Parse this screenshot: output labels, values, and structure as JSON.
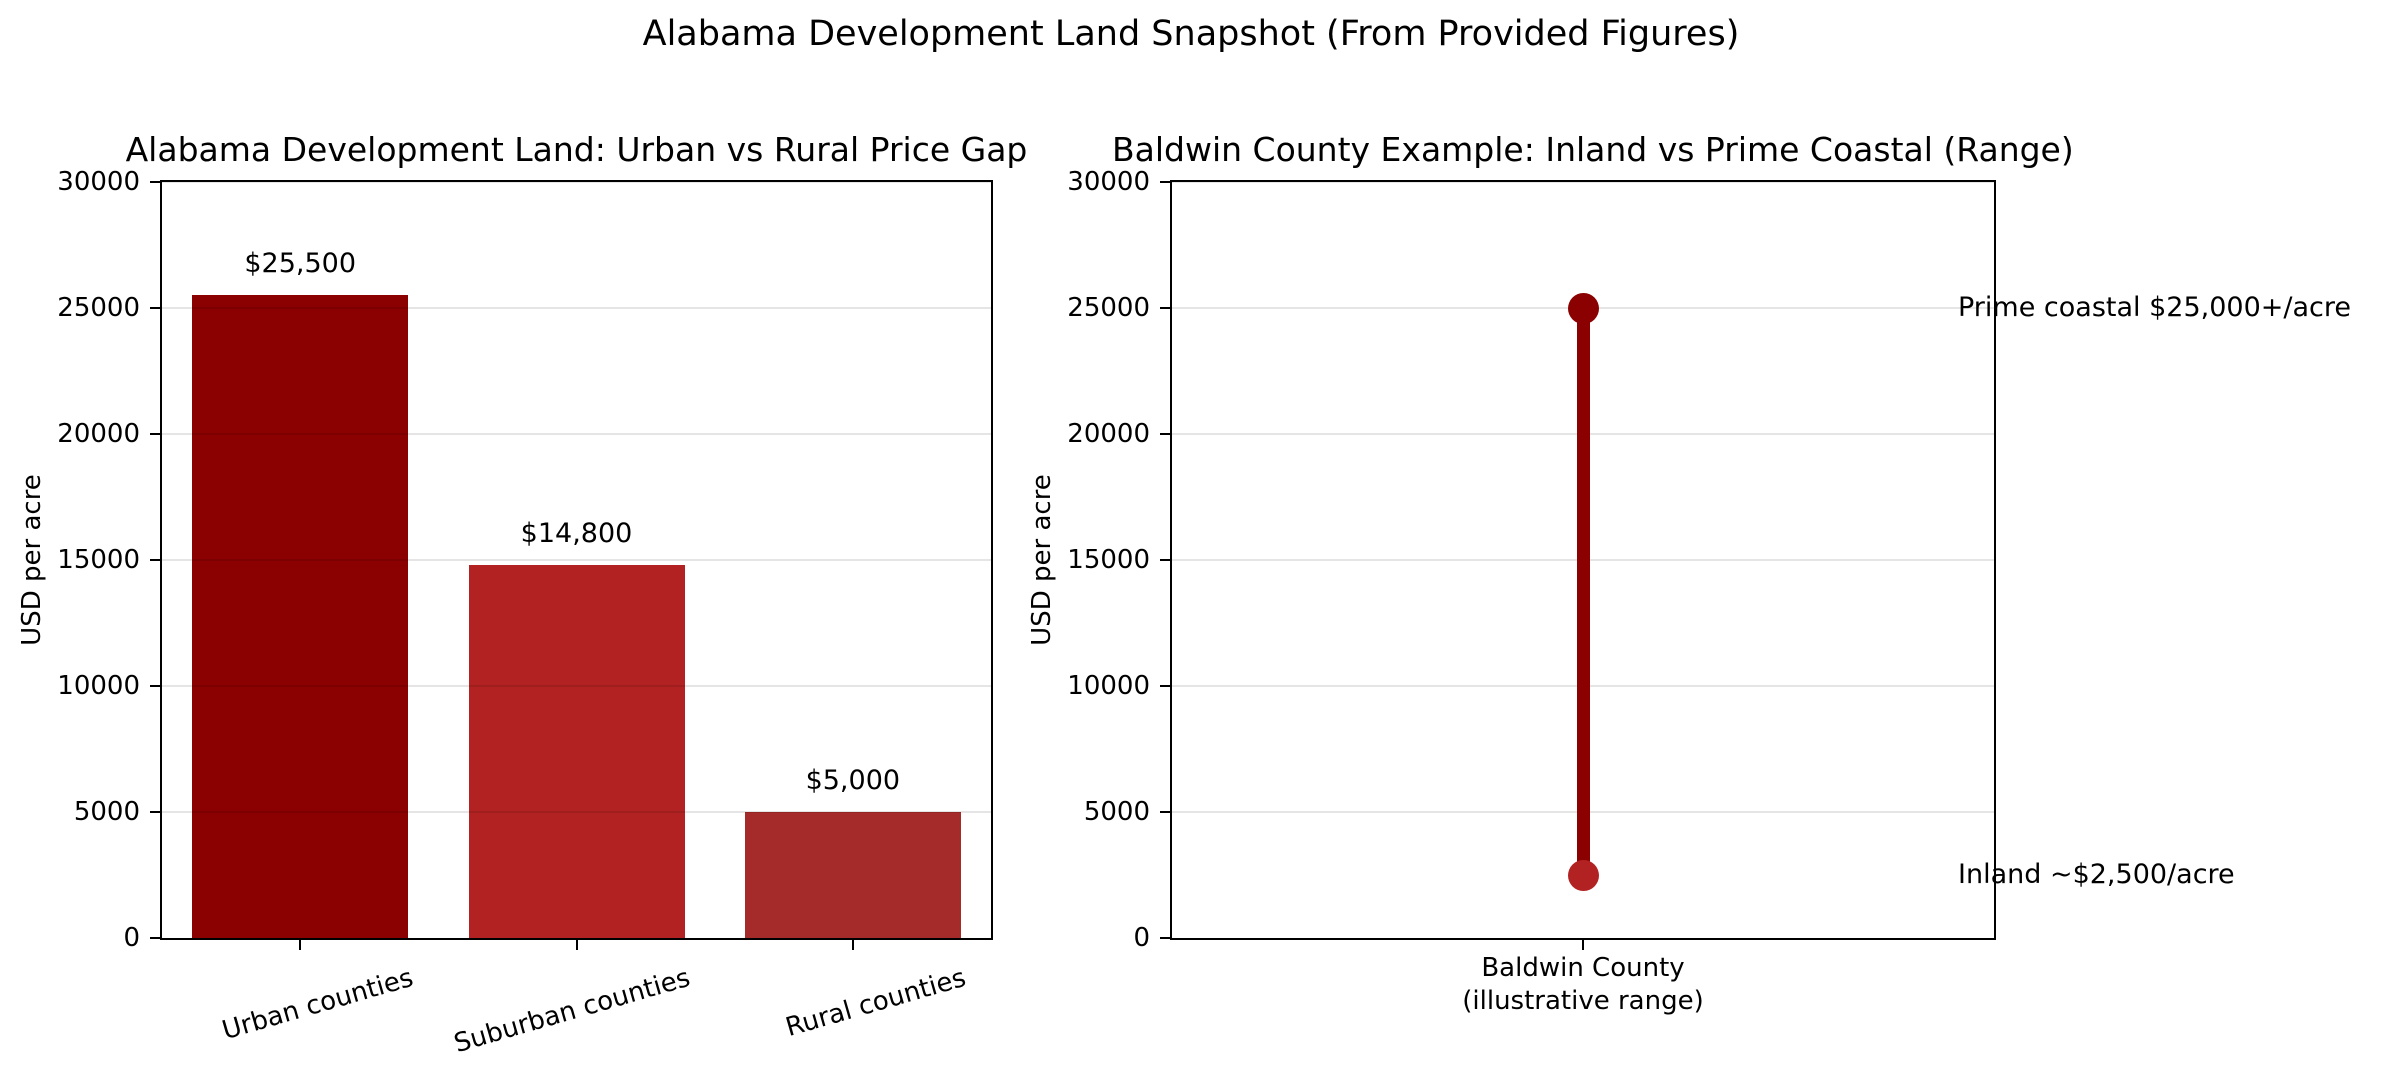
{
  "figure": {
    "suptitle": "Alabama Development Land Snapshot (From Provided Figures)",
    "background_color": "#ffffff",
    "text_color": "#000000",
    "grid_color_rgba": "rgba(0,0,0,0.10)"
  },
  "chart_data": [
    {
      "type": "bar",
      "title": "Alabama Development Land: Urban vs Rural Price Gap",
      "ylabel": "USD per acre",
      "ylim": [
        0,
        30000
      ],
      "yticks": [
        0,
        5000,
        10000,
        15000,
        20000,
        25000,
        30000
      ],
      "grid": "horizontal",
      "legend": "none",
      "categories": [
        "Urban counties",
        "Suburban counties",
        "Rural counties"
      ],
      "values": [
        25500,
        14800,
        5000
      ],
      "bar_labels": [
        "$25,500",
        "$14,800",
        "$5,000"
      ],
      "bar_colors": [
        "#8B0000",
        "#B22222",
        "#A52A2A"
      ],
      "xtick_rotation_deg": 16
    },
    {
      "type": "range",
      "title": "Baldwin County Example: Inland vs Prime Coastal (Range)",
      "ylabel": "USD per acre",
      "ylim": [
        0,
        30000
      ],
      "yticks": [
        0,
        5000,
        10000,
        15000,
        20000,
        25000,
        30000
      ],
      "grid": "horizontal",
      "legend": "none",
      "category": "Baldwin County",
      "xtick_lines": [
        "Baldwin County",
        "(illustrative range)"
      ],
      "line_color": "#8B0000",
      "points": [
        {
          "label": "Prime coastal",
          "value": 25000,
          "marker_color": "#8B0000",
          "annotation": "Prime coastal $25,000+/acre"
        },
        {
          "label": "Inland",
          "value": 2500,
          "marker_color": "#B22222",
          "annotation": "Inland ~$2,500/acre"
        }
      ]
    }
  ]
}
